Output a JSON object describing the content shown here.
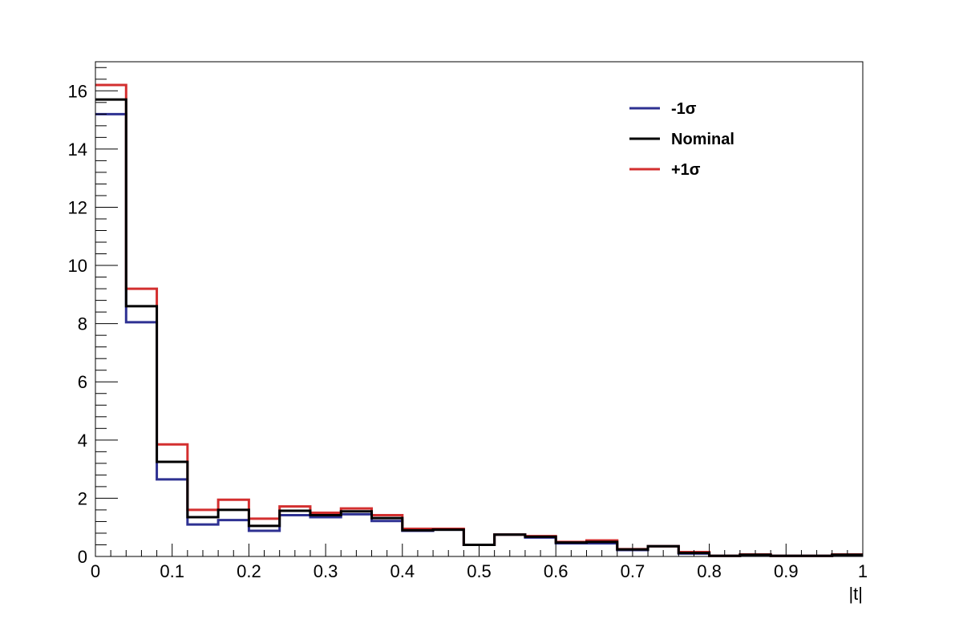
{
  "chart_data": {
    "type": "histogram-step",
    "title": "",
    "xlabel": "|t|",
    "ylabel": "",
    "xlim": [
      0,
      1
    ],
    "ylim": [
      0,
      17
    ],
    "grid": false,
    "legend_placement": "top-right",
    "bin_edges": [
      0,
      0.04,
      0.08,
      0.12,
      0.16,
      0.2,
      0.24,
      0.28,
      0.32,
      0.36,
      0.4,
      0.44,
      0.48,
      0.52,
      0.56,
      0.6,
      0.64,
      0.68,
      0.72,
      0.76,
      0.8,
      0.84,
      0.88,
      0.92,
      0.96,
      1.0
    ],
    "x_ticks": [
      {
        "value": 0,
        "label": "0"
      },
      {
        "value": 0.1,
        "label": "0.1"
      },
      {
        "value": 0.2,
        "label": "0.2"
      },
      {
        "value": 0.3,
        "label": "0.3"
      },
      {
        "value": 0.4,
        "label": "0.4"
      },
      {
        "value": 0.5,
        "label": "0.5"
      },
      {
        "value": 0.6,
        "label": "0.6"
      },
      {
        "value": 0.7,
        "label": "0.7"
      },
      {
        "value": 0.8,
        "label": "0.8"
      },
      {
        "value": 0.9,
        "label": "0.9"
      },
      {
        "value": 1,
        "label": "1"
      }
    ],
    "y_ticks": [
      {
        "value": 0,
        "label": "0"
      },
      {
        "value": 2,
        "label": "2"
      },
      {
        "value": 4,
        "label": "4"
      },
      {
        "value": 6,
        "label": "6"
      },
      {
        "value": 8,
        "label": "8"
      },
      {
        "value": 10,
        "label": "10"
      },
      {
        "value": 12,
        "label": "12"
      },
      {
        "value": 14,
        "label": "14"
      },
      {
        "value": 16,
        "label": "16"
      }
    ],
    "series": [
      {
        "name": "-1σ",
        "color": "#2e3192",
        "values": [
          15.2,
          8.05,
          2.65,
          1.1,
          1.25,
          0.88,
          1.42,
          1.35,
          1.45,
          1.22,
          0.88,
          0.92,
          0.4,
          0.75,
          0.65,
          0.45,
          0.45,
          0.22,
          0.35,
          0.1,
          0.02,
          0.05,
          0.02,
          0.02,
          0.05
        ]
      },
      {
        "name": "+1σ",
        "color": "#d32f2f",
        "values": [
          16.2,
          9.2,
          3.85,
          1.6,
          1.95,
          1.3,
          1.72,
          1.5,
          1.65,
          1.42,
          0.95,
          0.95,
          0.4,
          0.75,
          0.7,
          0.5,
          0.55,
          0.25,
          0.35,
          0.15,
          0.02,
          0.07,
          0.02,
          0.02,
          0.07
        ]
      },
      {
        "name": "Nominal",
        "color": "#000000",
        "values": [
          15.7,
          8.6,
          3.25,
          1.35,
          1.6,
          1.05,
          1.57,
          1.42,
          1.55,
          1.32,
          0.9,
          0.92,
          0.4,
          0.75,
          0.68,
          0.48,
          0.5,
          0.24,
          0.35,
          0.12,
          0.02,
          0.06,
          0.02,
          0.02,
          0.06
        ]
      }
    ],
    "legend": [
      {
        "name": "-1σ",
        "color": "#2e3192"
      },
      {
        "name": "Nominal",
        "color": "#000000"
      },
      {
        "name": "+1σ",
        "color": "#d32f2f"
      }
    ]
  }
}
